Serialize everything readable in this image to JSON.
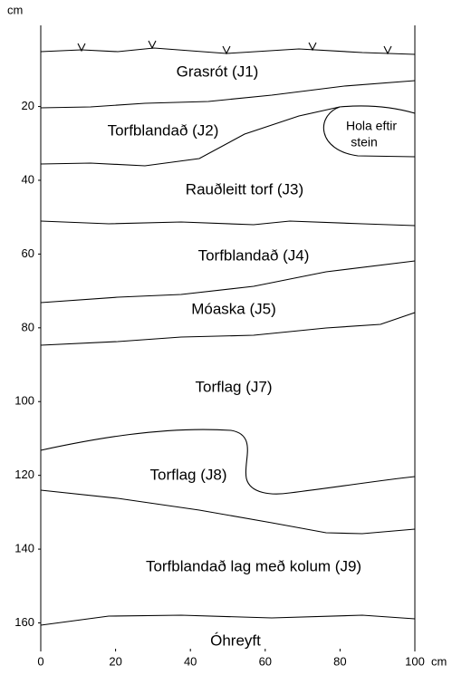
{
  "axes": {
    "y_unit": "cm",
    "x_unit": "cm",
    "xlim": [
      0,
      100
    ],
    "ylim": [
      -2,
      167
    ],
    "xticks": [
      0,
      20,
      40,
      60,
      80,
      100
    ],
    "yticks": [
      20,
      40,
      60,
      80,
      100,
      120,
      140,
      160
    ]
  },
  "layers": [
    "Grasrót (J1)",
    "Torfblandað (J2)",
    "Rauðleitt torf (J3)",
    "Torfblandað (J4)",
    "Móaska (J5)",
    "Torflag (J7)",
    "Torflag (J8)",
    "Torfblandað lag með kolum (J9)",
    "Óhreyft"
  ],
  "hole_label": [
    "Hola eftir",
    "stein"
  ]
}
